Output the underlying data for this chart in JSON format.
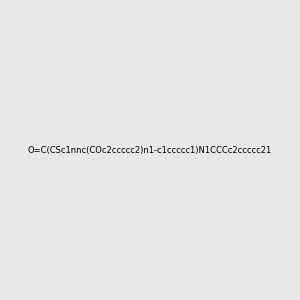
{
  "smiles": "O=C(CSc1nnc(COc2ccccc2)n1-c1ccccc1)N1CCCc2ccccc21",
  "image_size": 300,
  "background_color": "#e8e8e8",
  "bond_color": "#000000",
  "atom_colors": {
    "N": "#0000ff",
    "O": "#ff0000",
    "S": "#cccc00"
  },
  "title": ""
}
